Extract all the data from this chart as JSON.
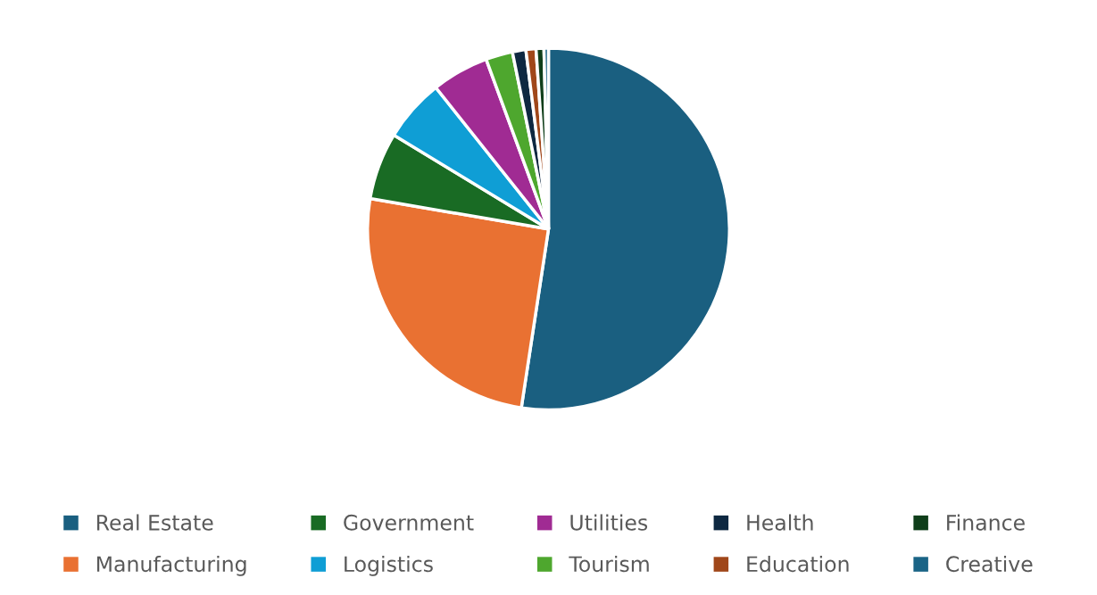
{
  "chart_data": {
    "type": "pie",
    "categories": [
      "Real Estate",
      "Manufacturing",
      "Government",
      "Logistics",
      "Utilities",
      "Tourism",
      "Health",
      "Education",
      "Finance",
      "Creative"
    ],
    "values": [
      52.4,
      25.3,
      6.0,
      5.6,
      5.1,
      2.4,
      1.2,
      0.9,
      0.7,
      0.4
    ],
    "colors": [
      "#1a5f80",
      "#e97132",
      "#196b24",
      "#0f9ed5",
      "#a02b93",
      "#4ea72e",
      "#0e2841",
      "#a0471a",
      "#0f3e1a",
      "#1a6486"
    ],
    "legend": "bottom"
  }
}
